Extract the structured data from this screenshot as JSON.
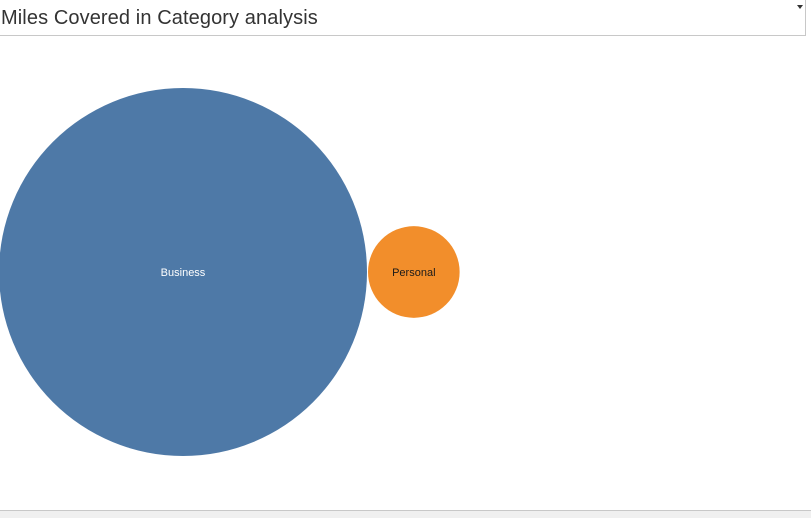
{
  "dropdown": {
    "title": "Miles Covered in Category analysis",
    "arrow_icon": "caret-down-icon"
  },
  "chart_data": {
    "type": "bubble",
    "title": "",
    "series": [
      {
        "name": "Business",
        "value": 1.0,
        "color": "#4e79a7",
        "label_color": "#ffffff"
      },
      {
        "name": "Personal",
        "value": 0.062,
        "color": "#f28e2b",
        "label_color": "#1a1a1a"
      }
    ]
  }
}
